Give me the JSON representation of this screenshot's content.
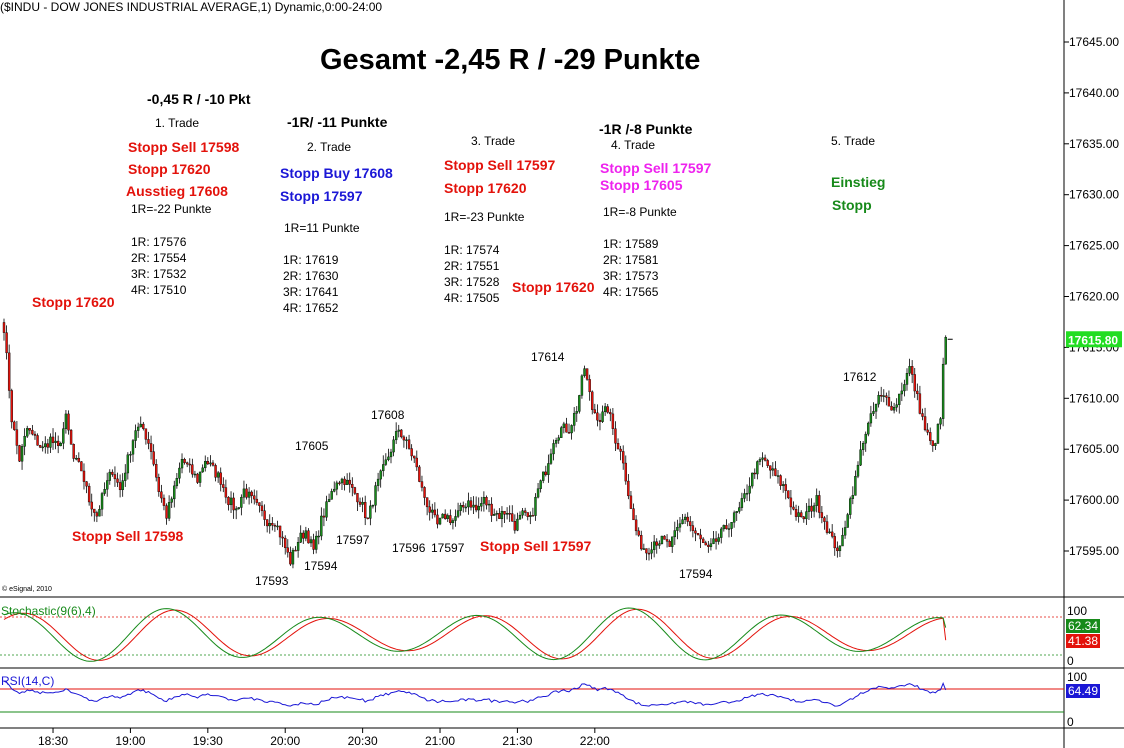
{
  "header": {
    "symbol_line": "($INDU - DOW JONES INDUSTRIAL AVERAGE,1) Dynamic,0:00-24:00",
    "copyright": "© eSignal, 2010"
  },
  "title": "Gesamt -2,45 R / -29 Punkte",
  "trades": [
    {
      "result": "-0,45 R / -10 Pkt",
      "name": "1. Trade",
      "lines": [
        "Stopp Sell 17598",
        "Stopp 17620",
        "Ausstieg 17608"
      ],
      "r_def": "1R=-22 Punkte",
      "targets": [
        "1R: 17576",
        "2R: 17554",
        "3R: 17532",
        "4R: 17510"
      ]
    },
    {
      "result": "-1R/ -11 Punkte",
      "name": "2. Trade",
      "lines": [
        "Stopp Buy 17608",
        "Stopp 17597"
      ],
      "r_def": "1R=11 Punkte",
      "targets": [
        "1R: 17619",
        "2R: 17630",
        "3R: 17641",
        "4R: 17652"
      ]
    },
    {
      "name": "3. Trade",
      "lines": [
        "Stopp Sell 17597",
        "Stopp 17620"
      ],
      "r_def": "1R=-23 Punkte",
      "targets": [
        "1R: 17574",
        "2R: 17551",
        "3R: 17528",
        "4R: 17505"
      ]
    },
    {
      "result": "-1R /-8 Punkte",
      "name": "4. Trade",
      "lines": [
        "Stopp Sell 17597",
        "Stopp 17605"
      ],
      "r_def": "1R=-8 Punkte",
      "targets": [
        "1R: 17589",
        "2R: 17581",
        "3R: 17573",
        "4R: 17565"
      ]
    },
    {
      "name": "5. Trade",
      "lines": [
        "Einstieg",
        "Stopp"
      ]
    }
  ],
  "chart_labels": {
    "stopp_left": "Stopp 17620",
    "stopp_mid": "Stopp 17620",
    "stopp_sell_1": "Stopp Sell 17598",
    "stopp_sell_3": "Stopp Sell 17597",
    "lvl_17593": "17593",
    "lvl_17594a": "17594",
    "lvl_17605": "17605",
    "lvl_17597a": "17597",
    "lvl_17608": "17608",
    "lvl_17596": "17596",
    "lvl_17597b": "17597",
    "lvl_17614": "17614",
    "lvl_17594b": "17594",
    "lvl_17612": "17612"
  },
  "panes": {
    "stoch": {
      "label": "Stochastic(9(6),4)",
      "k_value": "62.34",
      "d_value": "41.38",
      "k_color": "#178a1a",
      "d_color": "#e3120b",
      "axis_top": "100",
      "axis_bottom": "0"
    },
    "rsi": {
      "label": "RSI(14,C)",
      "value": "64.49",
      "color": "#1b17d6",
      "axis_top": "100",
      "axis_bottom": "0"
    }
  },
  "colors": {
    "up": "#178a1a",
    "down": "#e3120b",
    "last_price_bg": "#22dd22"
  },
  "chart_data": {
    "type": "candlestick",
    "title": "Gesamt -2,45 R / -29 Punkte",
    "x_ticks": [
      "18:30",
      "19:00",
      "19:30",
      "20:00",
      "20:30",
      "21:00",
      "21:30",
      "22:00"
    ],
    "y_ticks": [
      17595,
      17600,
      17605,
      17610,
      17615,
      17620,
      17625,
      17630,
      17635,
      17640,
      17645
    ],
    "ylim": [
      17590.5,
      17648
    ],
    "y_tick_labels": [
      "17595.00",
      "17600.00",
      "17605.00",
      "17610.00",
      "17615.00",
      "17620.00",
      "17625.00",
      "17630.00",
      "17635.00",
      "17640.00",
      "17645.00"
    ],
    "last_price": "17615.80",
    "x_axis_time": {
      "start": "18:11",
      "minutes_per_bar": 1
    },
    "close_path": [
      [
        0,
        17617
      ],
      [
        3,
        17608
      ],
      [
        6,
        17604
      ],
      [
        9,
        17607
      ],
      [
        12,
        17606
      ],
      [
        15,
        17605
      ],
      [
        18,
        17606
      ],
      [
        21,
        17605
      ],
      [
        24,
        17608
      ],
      [
        27,
        17604
      ],
      [
        30,
        17603
      ],
      [
        33,
        17600
      ],
      [
        36,
        17598.5
      ],
      [
        39,
        17601
      ],
      [
        42,
        17603
      ],
      [
        45,
        17601
      ],
      [
        48,
        17604
      ],
      [
        51,
        17607
      ],
      [
        54,
        17607
      ],
      [
        57,
        17605
      ],
      [
        60,
        17601
      ],
      [
        63,
        17598.5
      ],
      [
        66,
        17601
      ],
      [
        69,
        17604
      ],
      [
        72,
        17603
      ],
      [
        75,
        17602
      ],
      [
        78,
        17604
      ],
      [
        81,
        17603
      ],
      [
        84,
        17602
      ],
      [
        87,
        17600
      ],
      [
        90,
        17599
      ],
      [
        93,
        17601
      ],
      [
        96,
        17600
      ],
      [
        99,
        17599
      ],
      [
        102,
        17598
      ],
      [
        105,
        17598
      ],
      [
        108,
        17596
      ],
      [
        111,
        17594
      ],
      [
        114,
        17596
      ],
      [
        117,
        17597
      ],
      [
        120,
        17595
      ],
      [
        123,
        17598
      ],
      [
        126,
        17600
      ],
      [
        129,
        17602
      ],
      [
        132,
        17602
      ],
      [
        135,
        17601
      ],
      [
        138,
        17600
      ],
      [
        141,
        17598
      ],
      [
        144,
        17601
      ],
      [
        147,
        17603
      ],
      [
        150,
        17605
      ],
      [
        153,
        17607
      ],
      [
        156,
        17605.5
      ],
      [
        159,
        17604
      ],
      [
        162,
        17601
      ],
      [
        165,
        17599
      ],
      [
        168,
        17597.5
      ],
      [
        171,
        17598.5
      ],
      [
        174,
        17598
      ],
      [
        177,
        17599
      ],
      [
        180,
        17600
      ],
      [
        183,
        17599
      ],
      [
        186,
        17600
      ],
      [
        189,
        17599
      ],
      [
        192,
        17598.5
      ],
      [
        195,
        17599
      ],
      [
        198,
        17597.5
      ],
      [
        201,
        17598.5
      ],
      [
        204,
        17598
      ],
      [
        207,
        17601
      ],
      [
        210,
        17603
      ],
      [
        213,
        17606
      ],
      [
        216,
        17607
      ],
      [
        219,
        17607
      ],
      [
        222,
        17609
      ],
      [
        225,
        17613
      ],
      [
        228,
        17609
      ],
      [
        231,
        17608
      ],
      [
        234,
        17609
      ],
      [
        237,
        17606
      ],
      [
        240,
        17604
      ],
      [
        243,
        17599
      ],
      [
        246,
        17596
      ],
      [
        249,
        17595
      ],
      [
        252,
        17596
      ],
      [
        255,
        17596
      ],
      [
        258,
        17595.5
      ],
      [
        261,
        17597
      ],
      [
        264,
        17598.5
      ],
      [
        267,
        17597
      ],
      [
        270,
        17596
      ],
      [
        273,
        17595
      ],
      [
        276,
        17596
      ],
      [
        279,
        17597
      ],
      [
        282,
        17598
      ],
      [
        285,
        17599
      ],
      [
        288,
        17601
      ],
      [
        291,
        17603
      ],
      [
        294,
        17604
      ],
      [
        297,
        17603
      ],
      [
        300,
        17602
      ],
      [
        303,
        17601
      ],
      [
        306,
        17599
      ],
      [
        309,
        17598
      ],
      [
        312,
        17599
      ],
      [
        315,
        17600
      ],
      [
        318,
        17598
      ],
      [
        321,
        17596
      ],
      [
        324,
        17595
      ],
      [
        327,
        17599
      ],
      [
        330,
        17602
      ],
      [
        333,
        17606
      ],
      [
        336,
        17608
      ],
      [
        339,
        17610
      ],
      [
        342,
        17610
      ],
      [
        345,
        17609
      ],
      [
        348,
        17611
      ],
      [
        351,
        17613
      ],
      [
        354,
        17610
      ],
      [
        357,
        17607
      ],
      [
        360,
        17605
      ],
      [
        363,
        17608
      ],
      [
        364,
        17613
      ],
      [
        365,
        17616
      ]
    ],
    "stochastic": {
      "k": 62.34,
      "d": 41.38
    },
    "rsi": {
      "value": 64.49
    }
  }
}
